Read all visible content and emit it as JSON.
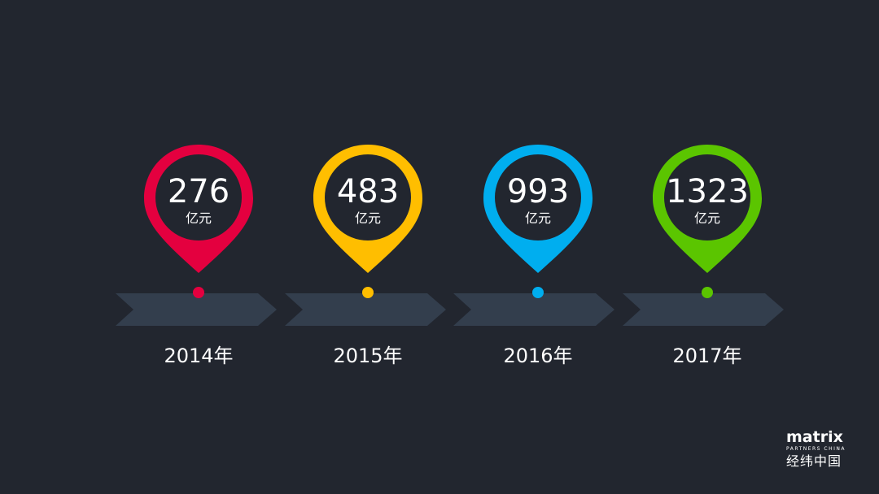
{
  "milestones": [
    {
      "value": "276",
      "unit": "亿元",
      "year": "2014年",
      "color": "#e4003f"
    },
    {
      "value": "483",
      "unit": "亿元",
      "year": "2015年",
      "color": "#ffbe00"
    },
    {
      "value": "993",
      "unit": "亿元",
      "year": "2016年",
      "color": "#00aeef"
    },
    {
      "value": "1323",
      "unit": "亿元",
      "year": "2017年",
      "color": "#5bc500"
    }
  ],
  "arrow_color": "#333e4d",
  "background_color": "#22262f",
  "logo": {
    "word": "matrix",
    "sub": "PARTNERS CHINA",
    "cn": "经纬中国"
  }
}
